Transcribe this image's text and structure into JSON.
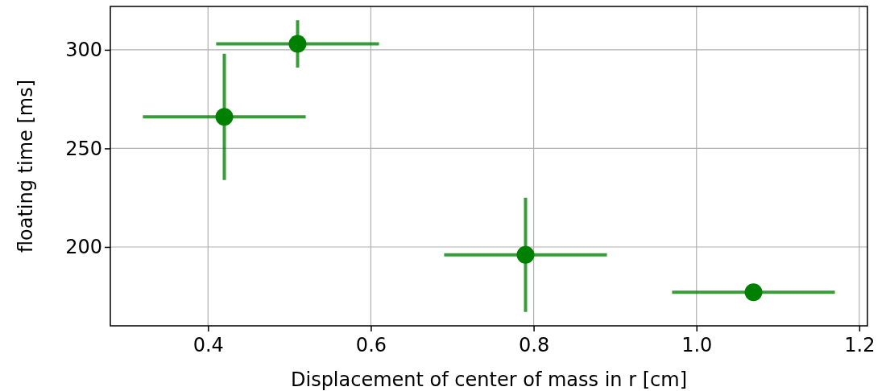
{
  "chart_data": {
    "type": "scatter",
    "xlabel": "Displacement of center of mass in r [cm]",
    "ylabel": "floating time [ms]",
    "x": [
      0.42,
      0.51,
      0.79,
      1.07
    ],
    "series": [
      {
        "color": "#008000",
        "values": [
          266,
          303,
          196,
          177
        ],
        "errors": [
          32,
          12,
          29,
          null
        ],
        "xerrors": [
          0.1,
          0.1,
          0.1,
          0.1
        ]
      }
    ],
    "xlim": [
      0.28,
      1.21
    ],
    "ylim": [
      160,
      322
    ],
    "xticks": [
      {
        "value": 0.4,
        "label": "0.4"
      },
      {
        "value": 0.6,
        "label": "0.6"
      },
      {
        "value": 0.8,
        "label": "0.8"
      },
      {
        "value": 1.0,
        "label": "1.0"
      },
      {
        "value": 1.2,
        "label": "1.2"
      }
    ],
    "yticks": [
      200,
      250,
      300
    ],
    "grid": true,
    "marker": "circle"
  }
}
